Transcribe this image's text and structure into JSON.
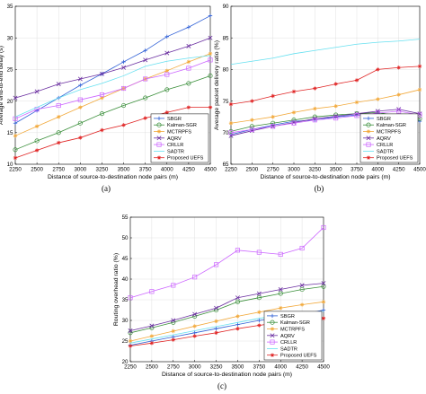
{
  "chart_data": [
    {
      "type": "line",
      "panel_label": "(a)",
      "title": "",
      "xlabel": "Distance of source-to-destination node pairs (m)",
      "ylabel": "Average end-to-end delay (s)",
      "x": [
        2250,
        2500,
        2750,
        3000,
        3250,
        3500,
        3750,
        4000,
        4250,
        4500
      ],
      "xlim": [
        2250,
        4500
      ],
      "ylim": [
        10,
        35
      ],
      "yticks": [
        10,
        15,
        20,
        25,
        30,
        35
      ],
      "grid": true,
      "legend_position": "bottom-right",
      "series": [
        {
          "name": "SBGR",
          "color": "#2e5fd6",
          "marker": "plus",
          "values": [
            16.5,
            18.5,
            20.5,
            22.5,
            24.3,
            26.2,
            28.0,
            30.2,
            31.7,
            33.5
          ]
        },
        {
          "name": "Kalman-SGR",
          "color": "#3a8f3a",
          "marker": "circle",
          "values": [
            12.3,
            13.7,
            15.0,
            16.5,
            18.0,
            19.3,
            20.5,
            21.8,
            22.8,
            24.0
          ]
        },
        {
          "name": "MCTRPFS",
          "color": "#f2a93b",
          "marker": "star",
          "values": [
            14.5,
            16.0,
            17.5,
            19.0,
            20.5,
            22.0,
            23.5,
            24.8,
            26.2,
            27.5
          ]
        },
        {
          "name": "AQRV",
          "color": "#6a2ea0",
          "marker": "x",
          "values": [
            20.5,
            21.5,
            22.7,
            23.5,
            24.3,
            25.3,
            26.5,
            27.6,
            28.7,
            30.0
          ]
        },
        {
          "name": "CRLLR",
          "color": "#cc66ff",
          "marker": "square",
          "values": [
            17.2,
            18.7,
            19.3,
            20.2,
            21.0,
            22.0,
            23.5,
            24.2,
            25.2,
            26.5
          ]
        },
        {
          "name": "SADTR",
          "color": "#66e0f0",
          "marker": "none",
          "values": [
            17.5,
            19.0,
            20.5,
            21.8,
            22.8,
            24.0,
            25.5,
            26.3,
            26.8,
            27.2
          ]
        },
        {
          "name": "Proposed UEFS",
          "color": "#e02424",
          "marker": "star",
          "values": [
            11.0,
            12.2,
            13.4,
            14.2,
            15.4,
            16.2,
            17.3,
            18.2,
            19.0,
            19.0
          ]
        }
      ]
    },
    {
      "type": "line",
      "panel_label": "(b)",
      "title": "",
      "xlabel": "Distance of source-to-destination node pairs (m)",
      "ylabel": "Average packet delivery ratio (%)",
      "x": [
        2250,
        2500,
        2750,
        3000,
        3250,
        3500,
        3750,
        4000,
        4250,
        4500
      ],
      "xlim": [
        2250,
        4500
      ],
      "ylim": [
        65,
        90
      ],
      "yticks": [
        65,
        70,
        75,
        80,
        85,
        90
      ],
      "grid": true,
      "legend_position": "bottom-right",
      "series": [
        {
          "name": "SBGR",
          "color": "#2e5fd6",
          "marker": "plus",
          "values": [
            69.7,
            70.5,
            71.2,
            71.8,
            72.0,
            72.5,
            72.8,
            73.0,
            72.5,
            71.8
          ]
        },
        {
          "name": "Kalman-SGR",
          "color": "#3a8f3a",
          "marker": "circle",
          "values": [
            70.2,
            71.0,
            71.5,
            72.0,
            72.5,
            72.8,
            73.0,
            73.2,
            72.6,
            72.2
          ]
        },
        {
          "name": "MCTRPFS",
          "color": "#f2a93b",
          "marker": "star",
          "values": [
            71.5,
            72.0,
            72.5,
            73.2,
            73.8,
            74.2,
            74.8,
            75.3,
            76.0,
            76.8
          ]
        },
        {
          "name": "AQRV",
          "color": "#6a2ea0",
          "marker": "x",
          "values": [
            69.5,
            70.3,
            71.0,
            71.6,
            72.2,
            72.6,
            73.0,
            73.4,
            73.7,
            73.0
          ]
        },
        {
          "name": "CRLLR",
          "color": "#cc66ff",
          "marker": "square",
          "values": [
            70.0,
            70.5,
            71.0,
            71.5,
            72.0,
            72.3,
            72.7,
            73.1,
            73.4,
            72.8
          ]
        },
        {
          "name": "SADTR",
          "color": "#66e0f0",
          "marker": "none",
          "values": [
            80.8,
            81.3,
            81.8,
            82.5,
            83.0,
            83.5,
            84.0,
            84.3,
            84.5,
            84.8
          ]
        },
        {
          "name": "Proposed UEFS",
          "color": "#e02424",
          "marker": "star",
          "values": [
            74.5,
            75.0,
            75.8,
            76.5,
            77.0,
            77.7,
            78.3,
            80.0,
            80.3,
            80.5
          ]
        }
      ]
    },
    {
      "type": "line",
      "panel_label": "(c)",
      "title": "",
      "xlabel": "Distance of source-to-destination node pairs (m)",
      "ylabel": "Routing overhead ratio (%)",
      "x": [
        2250,
        2500,
        2750,
        3000,
        3250,
        3500,
        3750,
        4000,
        4250,
        4500
      ],
      "xlim": [
        2250,
        4500
      ],
      "ylim": [
        20,
        55
      ],
      "yticks": [
        20,
        25,
        30,
        35,
        40,
        45,
        50,
        55
      ],
      "grid": true,
      "legend_position": "bottom-right",
      "series": [
        {
          "name": "SBGR",
          "color": "#2e5fd6",
          "marker": "plus",
          "values": [
            24.0,
            25.0,
            26.0,
            27.0,
            28.0,
            29.0,
            30.0,
            30.8,
            31.5,
            32.5
          ]
        },
        {
          "name": "Kalman-SGR",
          "color": "#3a8f3a",
          "marker": "circle",
          "values": [
            27.0,
            28.2,
            29.5,
            31.0,
            32.5,
            34.5,
            35.5,
            36.5,
            37.5,
            38.2
          ]
        },
        {
          "name": "MCTRPFS",
          "color": "#f2a93b",
          "marker": "star",
          "values": [
            25.0,
            26.2,
            27.4,
            28.6,
            29.8,
            31.0,
            32.0,
            33.0,
            33.8,
            34.5
          ]
        },
        {
          "name": "AQRV",
          "color": "#6a2ea0",
          "marker": "x",
          "values": [
            27.5,
            28.7,
            30.0,
            31.5,
            33.0,
            35.5,
            36.5,
            37.5,
            38.5,
            39.0
          ]
        },
        {
          "name": "CRLLR",
          "color": "#cc66ff",
          "marker": "square",
          "values": [
            35.5,
            37.0,
            38.5,
            40.5,
            43.5,
            47.0,
            46.5,
            46.0,
            47.5,
            52.5
          ]
        },
        {
          "name": "SADTR",
          "color": "#66e0f0",
          "marker": "none",
          "values": [
            24.5,
            25.5,
            26.5,
            27.5,
            28.5,
            29.5,
            30.5,
            31.2,
            31.8,
            32.2
          ]
        },
        {
          "name": "Proposed UEFS",
          "color": "#e02424",
          "marker": "star",
          "values": [
            23.8,
            24.5,
            25.3,
            26.2,
            27.0,
            28.0,
            28.8,
            29.5,
            30.0,
            30.5
          ]
        }
      ]
    }
  ]
}
